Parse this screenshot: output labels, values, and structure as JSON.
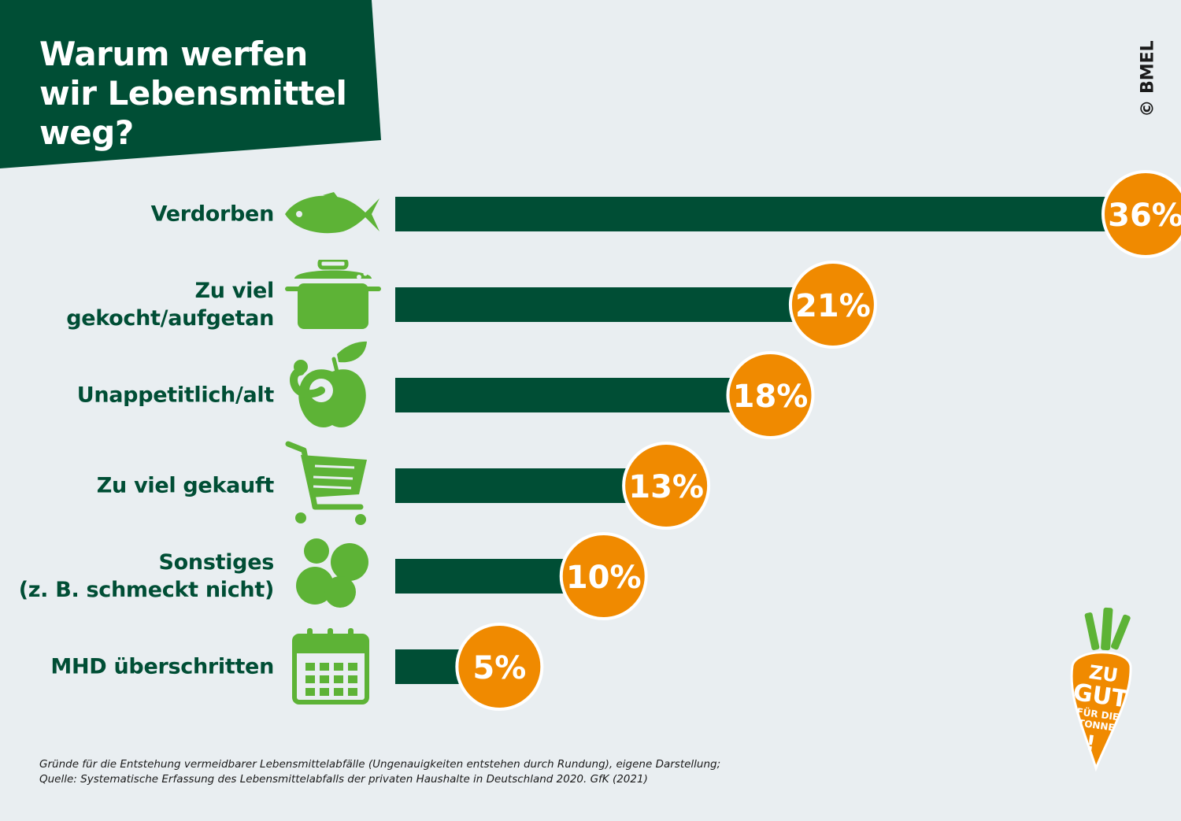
{
  "header": {
    "title": "Warum werfen wir Lebensmittel weg?",
    "copyright": "© BMEL"
  },
  "colors": {
    "bar": "#004e35",
    "badge": "#f08a00",
    "icon": "#5db336",
    "background": "#e9eef1"
  },
  "icons": [
    "fish-icon",
    "pot-icon",
    "apple-with-worm-icon",
    "shopping-cart-icon",
    "rotten-food-icon",
    "calendar-icon"
  ],
  "chart_data": {
    "type": "bar",
    "orientation": "horizontal",
    "categories": [
      "Verdorben",
      "Zu viel\ngekocht/aufgetan",
      "Unappetitlich/alt",
      "Zu viel gekauft",
      "Sonstiges\n(z. B. schmeckt nicht)",
      "MHD überschritten"
    ],
    "values": [
      36,
      21,
      18,
      13,
      10,
      5
    ],
    "value_labels": [
      "36%",
      "21%",
      "18%",
      "13%",
      "10%",
      "5%"
    ],
    "unit": "%",
    "xlim": [
      0,
      40
    ],
    "grid": false,
    "legend": "none"
  },
  "footer": {
    "source_line1": "Gründe für die Entstehung vermeidbarer Lebensmittelabfälle (Ungenauigkeiten entstehen durch Rundung), eigene Darstellung;",
    "source_line2": "Quelle: Systematische Erfassung des Lebensmittelabfalls der privaten Haushalte in Deutschland 2020. GfK (2021)"
  },
  "logo": {
    "line1": "ZU",
    "line2": "GUT",
    "line3": "FÜR DIE",
    "line4": "TONNE",
    "mark": "!"
  }
}
